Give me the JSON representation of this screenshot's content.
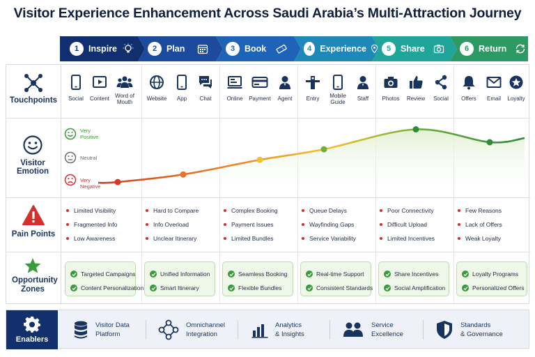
{
  "title": "Visitor Experience Enhancement Across Saudi Arabia’s Multi-Attraction Journey",
  "stages": [
    {
      "num": "1",
      "label": "Inspire",
      "color": "#0f2f6e",
      "icon": "lightbulb-icon"
    },
    {
      "num": "2",
      "label": "Plan",
      "color": "#1c4a9c",
      "icon": "calendar-icon"
    },
    {
      "num": "3",
      "label": "Book",
      "color": "#1f63b8",
      "icon": "ticket-icon"
    },
    {
      "num": "4",
      "label": "Experience",
      "color": "#1e88b8",
      "icon": "location-pin-icon"
    },
    {
      "num": "5",
      "label": "Share",
      "color": "#1fa59a",
      "icon": "camera-icon"
    },
    {
      "num": "6",
      "label": "Return",
      "color": "#2e9a63",
      "icon": "refresh-icon"
    }
  ],
  "rows": {
    "touchpoints": "Touchpoints",
    "emotion": "Visitor Emotion",
    "pain_points": "Pain Points",
    "opportunity": "Opportunity Zones"
  },
  "touchpoints": [
    [
      "Social",
      "Content",
      "Word of Mouth"
    ],
    [
      "Website",
      "App",
      "Chat"
    ],
    [
      "Online",
      "Payment",
      "Agent"
    ],
    [
      "Entry",
      "Mobile Guide",
      "Staff"
    ],
    [
      "Photos",
      "Review",
      "Social"
    ],
    [
      "Offers",
      "Email",
      "Loyalty"
    ]
  ],
  "touchpoint_icons": [
    [
      "smartphone-icon",
      "play-icon",
      "group-icon"
    ],
    [
      "globe-icon",
      "smartphone-icon",
      "chat-bubbles-icon"
    ],
    [
      "laptop-icon",
      "credit-card-icon",
      "agent-icon"
    ],
    [
      "gate-icon",
      "smartphone-icon",
      "person-icon"
    ],
    [
      "camera-icon",
      "thumbs-up-icon",
      "share-icon"
    ],
    [
      "bell-icon",
      "envelope-icon",
      "star-badge-icon"
    ]
  ],
  "emotion_levels": {
    "very_positive": "Very Positive",
    "neutral": "Neutral",
    "very_negative": "Very Negative"
  },
  "emotion_curve": {
    "scale": "very-negative to very-positive, 0 to 1",
    "points": [
      {
        "stage": "Inspire",
        "value": 0.07
      },
      {
        "stage": "Plan",
        "value": 0.2
      },
      {
        "stage": "Book",
        "value": 0.45
      },
      {
        "stage": "Experience",
        "value": 0.63
      },
      {
        "stage": "Share",
        "value": 0.97
      },
      {
        "stage": "Return",
        "value": 0.75
      }
    ]
  },
  "pain_points": [
    [
      "Limited Visibility",
      "Fragmented Info",
      "Low Awareness"
    ],
    [
      "Hard to Compare",
      "Info Overload",
      "Unclear Itinerary"
    ],
    [
      "Complex Booking",
      "Payment Issues",
      "Limited Bundles"
    ],
    [
      "Queue Delays",
      "Wayfinding Gaps",
      "Service Variability"
    ],
    [
      "Poor Connectivity",
      "Difficult Upload",
      "Limited Incentives"
    ],
    [
      "Few Reasons",
      "Lack of Offers",
      "Weak Loyalty"
    ]
  ],
  "opportunities": [
    [
      "Targeted Campaigns",
      "Content Personalization"
    ],
    [
      "Unified Information",
      "Smart Itinerary"
    ],
    [
      "Seamless Booking",
      "Flexible Bundles"
    ],
    [
      "Real-time Support",
      "Consistent Standards"
    ],
    [
      "Share Incentives",
      "Social Amplification"
    ],
    [
      "Loyalty Programs",
      "Personalized Offers"
    ]
  ],
  "enablers": {
    "title": "Enablers",
    "items": [
      {
        "line1": "Visitor Data",
        "line2": "Platform",
        "icon": "database-icon"
      },
      {
        "line1": "Omnichannel",
        "line2": "Integration",
        "icon": "network-icon"
      },
      {
        "line1": "Analytics",
        "line2": "& Insights",
        "icon": "bar-chart-icon"
      },
      {
        "line1": "Service",
        "line2": "Excellence",
        "icon": "people-icon"
      },
      {
        "line1": "Standards",
        "line2": "& Governance",
        "icon": "shield-icon"
      }
    ]
  },
  "colors": {
    "navy": "#12306b",
    "pain_red": "#d32f2f",
    "positive_green": "#3b9a3b",
    "curve_start": "#d9381e",
    "curve_mid": "#f2c12e",
    "curve_end": "#2e8b3a"
  }
}
